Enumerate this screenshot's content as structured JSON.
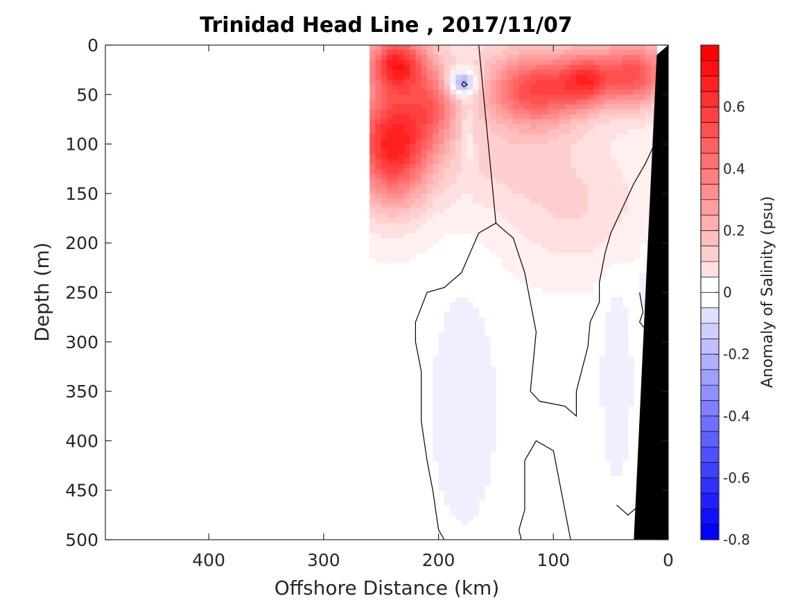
{
  "chart_data": {
    "type": "heatmap",
    "title": "Trinidad Head Line , 2017/11/07",
    "xlabel": "Offshore Distance (km)",
    "ylabel": "Depth (m)",
    "xlim": [
      490,
      0
    ],
    "ylim": [
      0,
      500
    ],
    "x_reversed": true,
    "y_reversed": true,
    "xticks": [
      400,
      300,
      200,
      100,
      0
    ],
    "xtick_labels": [
      "400",
      "300",
      "200",
      "100",
      "0"
    ],
    "yticks": [
      0,
      50,
      100,
      150,
      200,
      250,
      300,
      350,
      400,
      450,
      500
    ],
    "ytick_labels": [
      "0",
      "50",
      "100",
      "150",
      "200",
      "250",
      "300",
      "350",
      "400",
      "450",
      "500"
    ],
    "colorbar": {
      "label": "Anomaly of Salinity (psu)",
      "range": [
        -0.8,
        0.8
      ],
      "step": 0.05,
      "ticks": [
        -0.8,
        -0.6,
        -0.4,
        -0.2,
        0,
        0.2,
        0.4,
        0.6
      ],
      "tick_labels": [
        "-0.8",
        "-0.6",
        "-0.4",
        "-0.2",
        "0",
        "0.2",
        "0.4",
        "0.6"
      ],
      "low_color": "#0000ff",
      "mid_color": "#ffffff",
      "high_color": "#ff0000"
    },
    "contour_levels": [
      0
    ],
    "data_extent_km": [
      260,
      10
    ],
    "grid": false,
    "anomaly_features": [
      {
        "type": "max",
        "x_km": 240,
        "depth_m": 90,
        "value": 0.75
      },
      {
        "type": "max",
        "x_km": 235,
        "depth_m": 20,
        "value": 0.7
      },
      {
        "type": "max",
        "x_km": 115,
        "depth_m": 40,
        "value": 0.6
      },
      {
        "type": "max",
        "x_km": 30,
        "depth_m": 30,
        "value": 0.55
      },
      {
        "type": "min",
        "x_km": 180,
        "depth_m": 38,
        "value": 0.0
      },
      {
        "type": "min",
        "x_km": 180,
        "depth_m": 350,
        "value": -0.05
      },
      {
        "type": "min",
        "x_km": 45,
        "depth_m": 330,
        "value": -0.05
      }
    ],
    "shelf_bathymetry": [
      [
        10,
        0
      ],
      [
        30,
        500
      ]
    ]
  }
}
